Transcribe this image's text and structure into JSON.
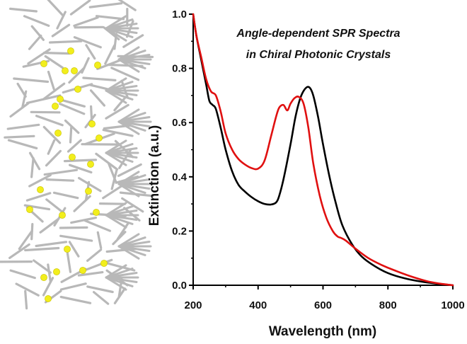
{
  "illustration": {
    "name": "chiral-photonic-crystal-model",
    "rod_color": "#b8b8b8",
    "particle_color": "#f2ee1c"
  },
  "chart_data": {
    "type": "line",
    "title": "Angle-dependent SPR Spectra",
    "subtitle": "in Chiral Photonic Crystals",
    "xlabel": "Wavelength (nm)",
    "ylabel": "Extinction (a.u.)",
    "xlim": [
      200,
      1000
    ],
    "ylim": [
      0,
      1.0
    ],
    "xticks": [
      200,
      400,
      600,
      800,
      1000
    ],
    "yticks": [
      "0.0",
      "0.2",
      "0.4",
      "0.6",
      "0.8",
      "1.0"
    ],
    "grid": false,
    "series": [
      {
        "name": "black",
        "color": "#000000",
        "x": [
          200,
          210,
          225,
          240,
          250,
          260,
          270,
          285,
          300,
          320,
          340,
          360,
          380,
          400,
          420,
          440,
          455,
          465,
          480,
          500,
          515,
          530,
          545,
          558,
          570,
          585,
          600,
          620,
          640,
          660,
          690,
          720,
          760,
          800,
          850,
          900,
          950,
          1000
        ],
        "y": [
          1.0,
          0.92,
          0.83,
          0.74,
          0.68,
          0.665,
          0.65,
          0.58,
          0.5,
          0.42,
          0.37,
          0.345,
          0.325,
          0.31,
          0.3,
          0.298,
          0.305,
          0.33,
          0.4,
          0.52,
          0.62,
          0.69,
          0.725,
          0.73,
          0.7,
          0.62,
          0.52,
          0.4,
          0.3,
          0.22,
          0.15,
          0.105,
          0.07,
          0.045,
          0.026,
          0.014,
          0.006,
          0.0
        ]
      },
      {
        "name": "red",
        "color": "#e01010",
        "x": [
          200,
          210,
          225,
          240,
          255,
          270,
          285,
          300,
          320,
          340,
          360,
          380,
          400,
          420,
          440,
          455,
          465,
          478,
          490,
          500,
          512,
          525,
          540,
          555,
          570,
          590,
          610,
          630,
          645,
          655,
          670,
          700,
          740,
          780,
          820,
          870,
          920,
          960,
          1000
        ],
        "y": [
          1.0,
          0.92,
          0.84,
          0.76,
          0.715,
          0.7,
          0.64,
          0.56,
          0.5,
          0.465,
          0.445,
          0.432,
          0.43,
          0.46,
          0.55,
          0.62,
          0.655,
          0.665,
          0.645,
          0.67,
          0.69,
          0.695,
          0.67,
          0.58,
          0.45,
          0.33,
          0.25,
          0.2,
          0.18,
          0.175,
          0.165,
          0.135,
          0.1,
          0.075,
          0.055,
          0.033,
          0.015,
          0.006,
          0.0
        ]
      }
    ]
  }
}
